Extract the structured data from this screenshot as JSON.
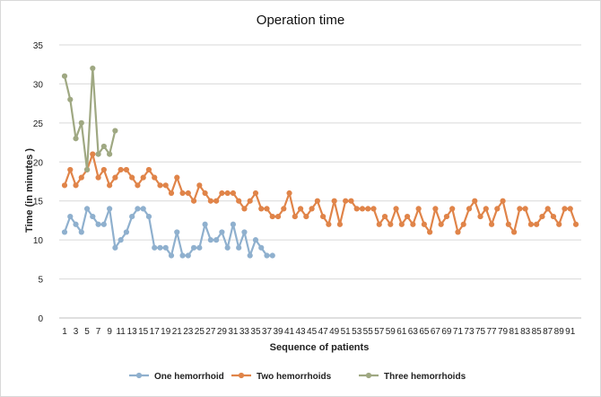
{
  "chart_data": {
    "type": "line",
    "title": "Operation time",
    "xlabel": "Sequence of patients",
    "ylabel": "Time (in minutes )",
    "ylim": [
      0,
      35
    ],
    "yticks": [
      0,
      5,
      10,
      15,
      20,
      25,
      30,
      35
    ],
    "x_categories": [
      "1",
      "3",
      "5",
      "7",
      "9",
      "11",
      "13",
      "15",
      "17",
      "19",
      "21",
      "23",
      "25",
      "27",
      "29",
      "31",
      "33",
      "35",
      "37",
      "39",
      "41",
      "43",
      "45",
      "47",
      "49",
      "51",
      "53",
      "55",
      "57",
      "59",
      "61",
      "63",
      "65",
      "67",
      "69",
      "71",
      "73",
      "75",
      "77",
      "79",
      "81",
      "83",
      "85",
      "87",
      "89",
      "91"
    ],
    "grid": true,
    "legend": "bottom",
    "series": [
      {
        "name": "One hemorrhoid",
        "color": "#8FB0CE",
        "x_start": 1,
        "values": [
          11,
          13,
          12,
          11,
          14,
          13,
          12,
          12,
          14,
          9,
          10,
          11,
          13,
          14,
          14,
          13,
          9,
          9,
          9,
          8,
          11,
          8,
          8,
          9,
          9,
          12,
          10,
          10,
          11,
          9,
          12,
          9,
          11,
          8,
          10,
          9,
          8,
          8
        ]
      },
      {
        "name": "Two hemorrhoids",
        "color": "#E08449",
        "x_start": 1,
        "values": [
          17,
          19,
          17,
          18,
          19,
          21,
          18,
          19,
          17,
          18,
          19,
          19,
          18,
          17,
          18,
          19,
          18,
          17,
          17,
          16,
          18,
          16,
          16,
          15,
          17,
          16,
          15,
          15,
          16,
          16,
          16,
          15,
          14,
          15,
          16,
          14,
          14,
          13,
          13,
          14,
          16,
          13,
          14,
          13,
          14,
          15,
          13,
          12,
          15,
          12,
          15,
          15,
          14,
          14,
          14,
          14,
          12,
          13,
          12,
          14,
          12,
          13,
          12,
          14,
          12,
          11,
          14,
          12,
          13,
          14,
          11,
          12,
          14,
          15,
          13,
          14,
          12,
          14,
          15,
          12,
          11,
          14,
          14,
          12,
          12,
          13,
          14,
          13,
          12,
          14,
          14,
          12
        ]
      },
      {
        "name": "Three hemorrhoids",
        "color": "#9FA882",
        "x_start": 1,
        "values": [
          31,
          28,
          23,
          25,
          19,
          32,
          21,
          22,
          21,
          24
        ]
      }
    ]
  }
}
